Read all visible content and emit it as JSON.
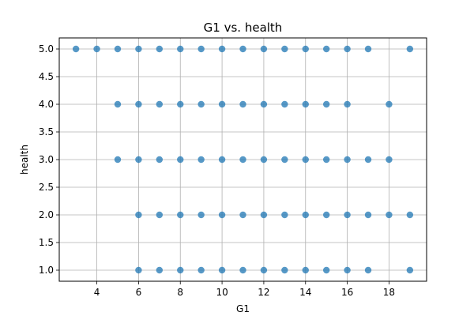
{
  "chart_data": {
    "type": "scatter",
    "title": "G1 vs. health",
    "xlabel": "G1",
    "ylabel": "health",
    "xlim": [
      2.2,
      19.8
    ],
    "ylim": [
      0.8,
      5.2
    ],
    "xticks": [
      4,
      6,
      8,
      10,
      12,
      14,
      16,
      18
    ],
    "xtick_labels": [
      "4",
      "6",
      "8",
      "10",
      "12",
      "14",
      "16",
      "18"
    ],
    "yticks": [
      1.0,
      1.5,
      2.0,
      2.5,
      3.0,
      3.5,
      4.0,
      4.5,
      5.0
    ],
    "ytick_labels": [
      "1.0",
      "1.5",
      "2.0",
      "2.5",
      "3.0",
      "3.5",
      "4.0",
      "4.5",
      "5.0"
    ],
    "grid": true,
    "marker_color": "#1f77b4",
    "series": [
      {
        "x": [
          3,
          4,
          5,
          6,
          7,
          8,
          9,
          10,
          11,
          12,
          13,
          14,
          15,
          16,
          17,
          19,
          5,
          6,
          7,
          8,
          9,
          10,
          11,
          12,
          13,
          14,
          15,
          16,
          18,
          5,
          6,
          7,
          8,
          9,
          10,
          11,
          12,
          13,
          14,
          15,
          16,
          17,
          18,
          6,
          7,
          8,
          9,
          10,
          11,
          12,
          13,
          14,
          15,
          16,
          17,
          18,
          19,
          6,
          7,
          8,
          9,
          10,
          11,
          12,
          13,
          14,
          15,
          16,
          17,
          19
        ],
        "y": [
          5,
          5,
          5,
          5,
          5,
          5,
          5,
          5,
          5,
          5,
          5,
          5,
          5,
          5,
          5,
          5,
          4,
          4,
          4,
          4,
          4,
          4,
          4,
          4,
          4,
          4,
          4,
          4,
          4,
          3,
          3,
          3,
          3,
          3,
          3,
          3,
          3,
          3,
          3,
          3,
          3,
          3,
          3,
          2,
          2,
          2,
          2,
          2,
          2,
          2,
          2,
          2,
          2,
          2,
          2,
          2,
          2,
          1,
          1,
          1,
          1,
          1,
          1,
          1,
          1,
          1,
          1,
          1,
          1,
          1
        ]
      }
    ]
  }
}
